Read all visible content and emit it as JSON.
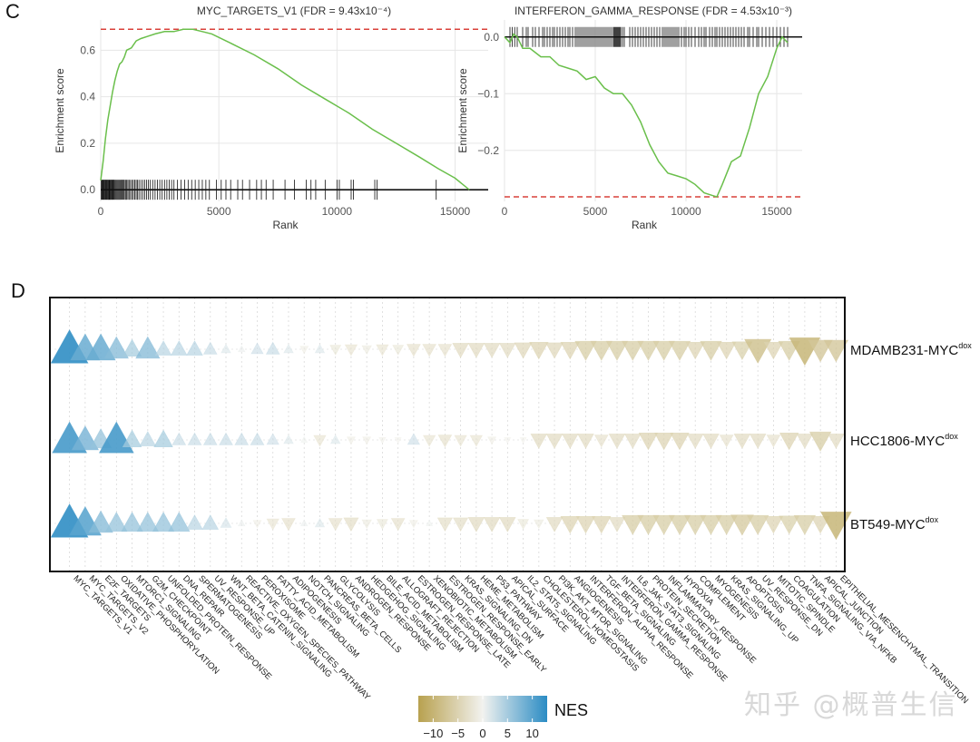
{
  "panels": {
    "c_label": "C",
    "d_label": "D"
  },
  "watermark": "知乎 @概普生信",
  "colors": {
    "curve": "#6abf4b",
    "dashed": "#d9403a",
    "negative_end": "#b8a14f",
    "zero": "#f2f2ef",
    "positive_end": "#2b8cc4"
  },
  "chart_data": [
    {
      "type": "line",
      "title": "MYC_TARGETS_V1 (FDR = 9.43x10⁻⁴)",
      "xlabel": "Rank",
      "ylabel": "Enrichment score",
      "xlim": [
        0,
        16400
      ],
      "ylim": [
        -0.05,
        0.73
      ],
      "xticks": [
        0,
        5000,
        10000,
        15000
      ],
      "yticks": [
        0.0,
        0.2,
        0.4,
        0.6
      ],
      "ytick_labels": [
        "0.0",
        "0.2",
        "0.4",
        "0.6"
      ],
      "xtick_labels": [
        "0",
        "5000",
        "10000",
        "15000"
      ],
      "max_es": 0.69,
      "curve": [
        [
          0,
          0.04
        ],
        [
          100,
          0.12
        ],
        [
          200,
          0.22
        ],
        [
          300,
          0.3
        ],
        [
          400,
          0.36
        ],
        [
          500,
          0.42
        ],
        [
          600,
          0.47
        ],
        [
          700,
          0.51
        ],
        [
          800,
          0.54
        ],
        [
          900,
          0.55
        ],
        [
          1000,
          0.57
        ],
        [
          1100,
          0.6
        ],
        [
          1300,
          0.61
        ],
        [
          1500,
          0.64
        ],
        [
          1700,
          0.65
        ],
        [
          2000,
          0.66
        ],
        [
          2300,
          0.67
        ],
        [
          2700,
          0.68
        ],
        [
          3100,
          0.68
        ],
        [
          3500,
          0.69
        ],
        [
          3900,
          0.69
        ],
        [
          4300,
          0.68
        ],
        [
          4700,
          0.67
        ],
        [
          5500,
          0.63
        ],
        [
          6500,
          0.58
        ],
        [
          7500,
          0.52
        ],
        [
          8500,
          0.45
        ],
        [
          9500,
          0.39
        ],
        [
          10500,
          0.33
        ],
        [
          11500,
          0.26
        ],
        [
          12500,
          0.2
        ],
        [
          13500,
          0.14
        ],
        [
          14300,
          0.09
        ],
        [
          15000,
          0.05
        ],
        [
          15600,
          0.0
        ]
      ],
      "hits": [
        20,
        50,
        80,
        110,
        140,
        170,
        200,
        230,
        260,
        290,
        320,
        350,
        380,
        410,
        440,
        470,
        500,
        530,
        560,
        600,
        640,
        680,
        720,
        760,
        800,
        840,
        880,
        920,
        960,
        1000,
        1050,
        1100,
        1150,
        1200,
        1260,
        1320,
        1380,
        1440,
        1500,
        1560,
        1620,
        1700,
        1780,
        1860,
        1940,
        2020,
        2100,
        2200,
        2300,
        2400,
        2500,
        2600,
        2700,
        2800,
        2900,
        3000,
        3100,
        3250,
        3400,
        3550,
        3700,
        3850,
        4000,
        4150,
        4300,
        4450,
        4600,
        4900,
        5100,
        5300,
        5500,
        5800,
        6000,
        6300,
        6600,
        6800,
        7000,
        7300,
        7800,
        8200,
        8700,
        8900,
        9100,
        9500,
        10000,
        10100,
        10600,
        10700,
        11600,
        11700,
        14200
      ],
      "series": [
        {
          "name": "running enrichment score"
        }
      ]
    },
    {
      "type": "line",
      "title": "INTERFERON_GAMMA_RESPONSE (FDR = 4.53x10⁻³)",
      "xlabel": "Rank",
      "ylabel": "Enrichment score",
      "xlim": [
        0,
        16400
      ],
      "ylim": [
        -0.29,
        0.03
      ],
      "xticks": [
        0,
        5000,
        10000,
        15000
      ],
      "yticks": [
        0.0,
        -0.1,
        -0.2
      ],
      "ytick_labels": [
        "0.0",
        "−0.1",
        "−0.2"
      ],
      "xtick_labels": [
        "0",
        "5000",
        "10000",
        "15000"
      ],
      "min_es": -0.282,
      "curve": [
        [
          0,
          0.0
        ],
        [
          300,
          -0.01
        ],
        [
          500,
          0.005
        ],
        [
          700,
          0.0
        ],
        [
          1000,
          -0.02
        ],
        [
          1400,
          -0.02
        ],
        [
          2000,
          -0.035
        ],
        [
          2500,
          -0.035
        ],
        [
          3000,
          -0.05
        ],
        [
          3500,
          -0.055
        ],
        [
          4000,
          -0.06
        ],
        [
          4500,
          -0.075
        ],
        [
          5000,
          -0.07
        ],
        [
          5500,
          -0.09
        ],
        [
          6000,
          -0.1
        ],
        [
          6500,
          -0.1
        ],
        [
          7000,
          -0.12
        ],
        [
          7500,
          -0.15
        ],
        [
          8000,
          -0.19
        ],
        [
          8500,
          -0.22
        ],
        [
          9000,
          -0.24
        ],
        [
          9500,
          -0.245
        ],
        [
          10000,
          -0.25
        ],
        [
          10500,
          -0.26
        ],
        [
          11000,
          -0.275
        ],
        [
          11500,
          -0.28
        ],
        [
          11700,
          -0.282
        ],
        [
          12000,
          -0.26
        ],
        [
          12500,
          -0.22
        ],
        [
          13000,
          -0.21
        ],
        [
          13500,
          -0.16
        ],
        [
          14000,
          -0.1
        ],
        [
          14500,
          -0.07
        ],
        [
          15000,
          -0.02
        ],
        [
          15300,
          0.0
        ],
        [
          15600,
          -0.01
        ]
      ],
      "hits": [
        300,
        420,
        560,
        700,
        1000,
        1200,
        1300,
        1550,
        1700,
        1900,
        2100,
        2200,
        2350,
        2500,
        2650,
        2750,
        2900,
        3050,
        3200,
        3350,
        3500,
        3600,
        3750,
        3900,
        4000,
        4100,
        4200,
        4300,
        4400,
        4500,
        4600,
        4700,
        4800,
        4900,
        5000,
        5100,
        5200,
        5300,
        5400,
        5500,
        5600,
        5700,
        5800,
        5900,
        6000,
        6050,
        6100,
        6150,
        6200,
        6250,
        6300,
        6350,
        6400,
        6500,
        6600,
        6900,
        7050,
        7200,
        7350,
        7500,
        7650,
        7800,
        7950,
        8100,
        8250,
        8400,
        8550,
        8700,
        8800,
        8900,
        9000,
        9100,
        9200,
        9300,
        9400,
        9500,
        9600,
        9750,
        9900,
        10000,
        10150,
        10300,
        10500,
        10700,
        10850,
        11000,
        11100,
        11300,
        11450,
        11600,
        11700,
        11850,
        12000,
        12150,
        12300,
        12450,
        12600,
        12750,
        12900,
        13050,
        13200,
        13400,
        13500,
        13700,
        13900,
        14000,
        14200,
        14400,
        14600,
        14800,
        15000,
        15200,
        15400,
        15600
      ],
      "series": [
        {
          "name": "running enrichment score"
        }
      ]
    },
    {
      "type": "scatter",
      "subtype": "triangle dot plot",
      "title": "",
      "legend": {
        "title": "NES",
        "ticks": [
          -10,
          -5,
          0,
          5,
          10
        ],
        "tick_labels": [
          "−10",
          "−5",
          "0",
          "5",
          "10"
        ],
        "range": [
          -13,
          13
        ],
        "placement": "bottom-center"
      },
      "rows": [
        "MDAMB231-MYCᵈᵒˣ",
        "HCC1806-MYCᵈᵒˣ",
        "BT549-MYCᵈᵒˣ"
      ],
      "row_labels": [
        {
          "base": "MDAMB231-MYC",
          "sup": "dox"
        },
        {
          "base": "HCC1806-MYC",
          "sup": "dox"
        },
        {
          "base": "BT549-MYC",
          "sup": "dox"
        }
      ],
      "categories": [
        "MYC_TARGETS_V1",
        "MYC_TARGETS_V2",
        "E2F_TARGETS",
        "OXIDATIVE_PHOSPHORYLATION",
        "MTORC1_SIGNALING",
        "G2M_CHECKPOINT",
        "UNFOLDED_PROTEIN_RESPONSE",
        "DNA_REPAIR",
        "SPERMATOGENESIS",
        "UV_RESPONSE_UP",
        "WNT_BETA_CATENIN_SIGNALING",
        "REACTIVE_OXYGEN_SPECIES_PATHWAY",
        "PEROXISOME",
        "FATTY_ACID_METABOLISM",
        "ADIPOGENESIS",
        "NOTCH_SIGNALING",
        "PANCREAS_BETA_CELLS",
        "GLYCOLYSIS",
        "ANDROGEN_RESPONSE",
        "HEDGEHOG_SIGNALING",
        "BILE_ACID_METABOLISM",
        "ALLOGRAFT_REJECTION",
        "ESTROGEN_RESPONSE_LATE",
        "XENOBIOTIC_METABOLISM",
        "ESTROGEN_RESPONSE_EARLY",
        "KRAS_SIGNALING_DN",
        "HEME_METABOLISM",
        "P53_PATHWAY",
        "APICAL_SURFACE",
        "IL2_STAT5_SIGNALING",
        "CHOLESTEROL_HOMEOSTASIS",
        "PI3K_AKT_MTOR_SIGNALING",
        "ANGIOGENESIS",
        "INTERFERON_ALPHA_RESPONSE",
        "TGF_BETA_SIGNALING",
        "INTERFERON_GAMMA_RESPONSE",
        "IL6_JAK_STAT3_SIGNALING",
        "PROTEIN_SECRETION",
        "INFLAMMATORY_RESPONSE",
        "HYPOXIA",
        "COMPLEMENT",
        "MYOGENESIS",
        "KRAS_SIGNALING_UP",
        "APOPTOSIS",
        "UV_RESPONSE_DN",
        "MITOTIC_SPINDLE",
        "COAGULATION",
        "TNFA_SIGNALING_VIA_NFKB",
        "APICAL_JUNCTION",
        "EPITHELIAL_MESENCHYMAL_TRANSITION"
      ],
      "series": [
        {
          "name": "MDAMB231-MYCdox",
          "values": [
            12,
            9,
            9,
            7,
            5,
            7,
            4,
            4,
            4,
            3,
            1.5,
            0.5,
            2.5,
            3,
            1.5,
            -1,
            1.5,
            -2,
            -2.5,
            -1.5,
            -2.5,
            -2,
            -3,
            -3,
            -3,
            -4,
            -4,
            -4,
            -4,
            -4.5,
            -5,
            -4.5,
            -5,
            -6,
            -6,
            -6,
            -6,
            -6,
            -6,
            -6,
            -5,
            -6,
            -5,
            -5.5,
            -8,
            -5,
            -6,
            -9.5,
            -7,
            -7
          ]
        },
        {
          "name": "HCC1806-MYCdox",
          "values": [
            11,
            8,
            6,
            11,
            5,
            4,
            5,
            3,
            3,
            3,
            3,
            3,
            3,
            2.5,
            1.5,
            0.3,
            -2.5,
            1.5,
            -1,
            -1,
            -0.5,
            -0.3,
            2.5,
            -2.5,
            -3,
            -2.5,
            -2.5,
            -1,
            -0.3,
            -0.3,
            -4,
            -4,
            -4,
            -4,
            -3,
            -4,
            -4,
            -5,
            -5,
            -5,
            -4,
            -4,
            -3,
            -4,
            -4,
            -3,
            -5,
            -4,
            -6,
            -4
          ]
        },
        {
          "name": "BT549-MYCdox",
          "values": [
            12,
            10,
            7,
            6,
            6,
            6,
            6,
            6,
            4,
            4,
            2,
            0.5,
            -1,
            -2.5,
            -3,
            0.5,
            1.5,
            -3,
            -3.5,
            -1.5,
            -2,
            -3,
            -1,
            0.3,
            -3.5,
            -3.5,
            -4,
            -4,
            -4,
            -2,
            -1.5,
            -4,
            -5,
            -5,
            -5,
            -4,
            -6,
            -6,
            -6,
            -6,
            -6,
            -6,
            -6,
            -6.5,
            -6,
            -5,
            -5.5,
            -6,
            -5,
            -9.5
          ]
        }
      ]
    }
  ]
}
